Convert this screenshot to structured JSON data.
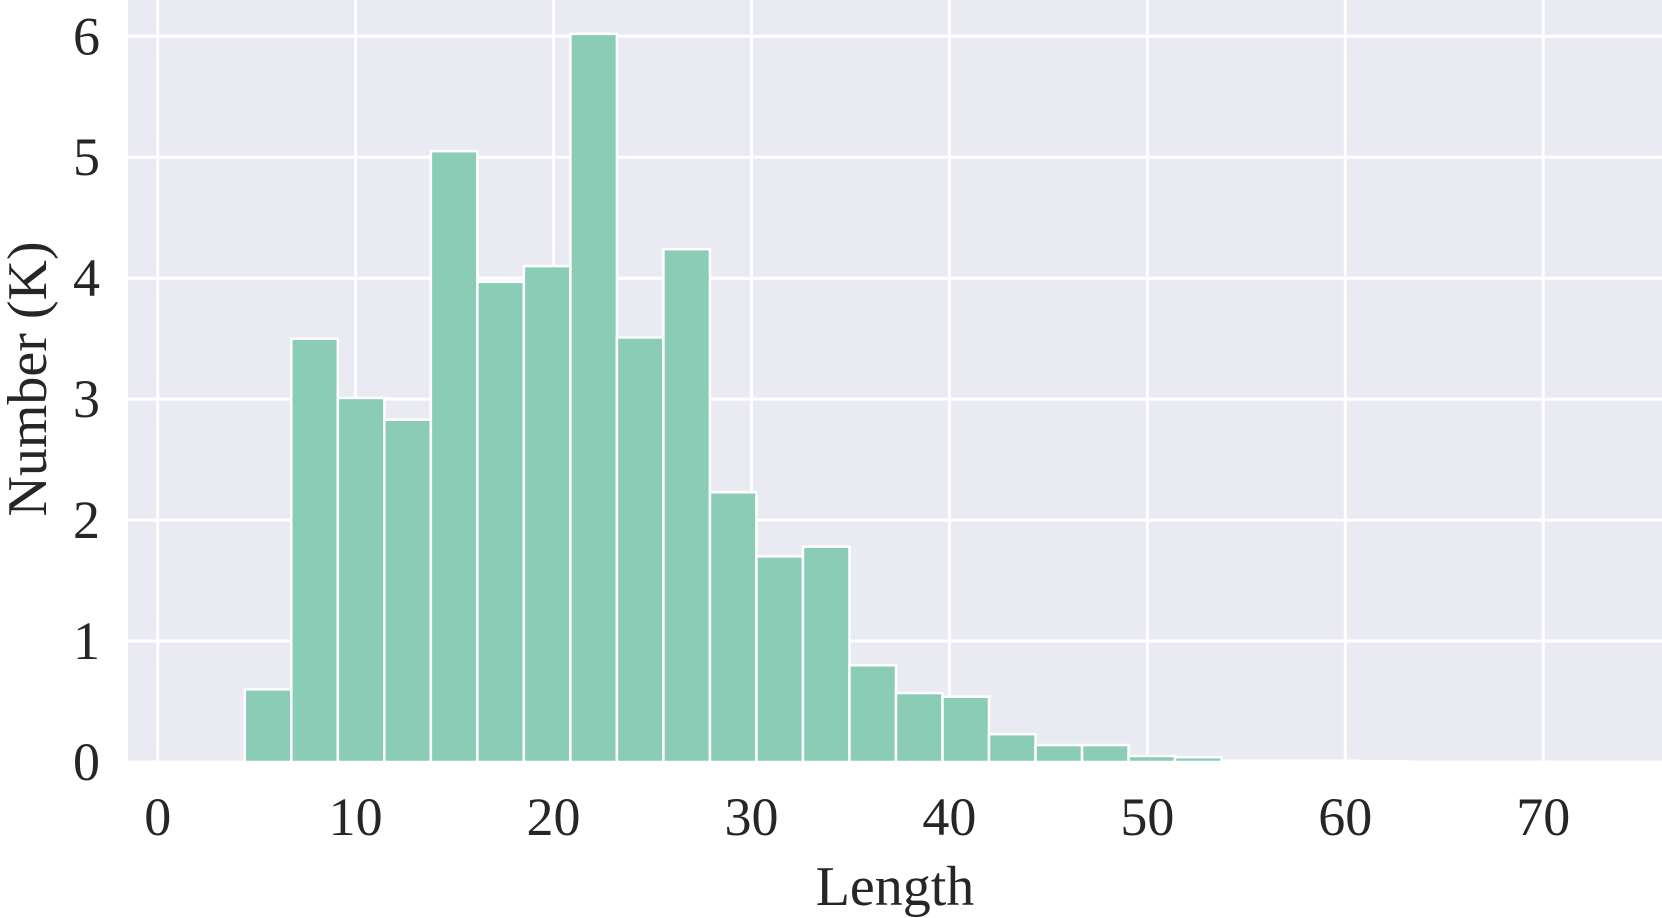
{
  "chart_data": {
    "type": "bar",
    "title": "",
    "xlabel": "Length",
    "ylabel": "Number (K)",
    "xlim": [
      -1.5,
      76
    ],
    "ylim": [
      0,
      6.3
    ],
    "xticks": [
      0,
      10,
      20,
      30,
      40,
      50,
      60,
      70
    ],
    "yticks": [
      0,
      1,
      2,
      3,
      4,
      5,
      6
    ],
    "grid": true,
    "bin_width": 2.35,
    "bins": [
      {
        "x0": 4.4,
        "value": 0.6
      },
      {
        "x0": 6.75,
        "value": 3.5
      },
      {
        "x0": 9.1,
        "value": 3.01
      },
      {
        "x0": 11.45,
        "value": 2.83
      },
      {
        "x0": 13.8,
        "value": 5.05
      },
      {
        "x0": 16.15,
        "value": 3.97
      },
      {
        "x0": 18.5,
        "value": 4.1
      },
      {
        "x0": 20.85,
        "value": 6.02
      },
      {
        "x0": 23.2,
        "value": 3.51
      },
      {
        "x0": 25.55,
        "value": 4.24
      },
      {
        "x0": 27.9,
        "value": 2.23
      },
      {
        "x0": 30.25,
        "value": 1.7
      },
      {
        "x0": 32.6,
        "value": 1.78
      },
      {
        "x0": 34.95,
        "value": 0.8
      },
      {
        "x0": 37.3,
        "value": 0.57
      },
      {
        "x0": 39.65,
        "value": 0.54
      },
      {
        "x0": 42.0,
        "value": 0.23
      },
      {
        "x0": 44.35,
        "value": 0.14
      },
      {
        "x0": 46.7,
        "value": 0.14
      },
      {
        "x0": 49.05,
        "value": 0.05
      },
      {
        "x0": 51.4,
        "value": 0.04
      },
      {
        "x0": 53.75,
        "value": 0.01
      },
      {
        "x0": 56.1,
        "value": 0.01
      },
      {
        "x0": 58.45,
        "value": 0.01
      },
      {
        "x0": 60.8,
        "value": 0.005
      }
    ],
    "colors": {
      "plot_background": "#eaeaf2",
      "grid": "#ffffff",
      "bar_fill": "#8accb6",
      "bar_edge": "#ffffff",
      "text": "#262626"
    }
  }
}
